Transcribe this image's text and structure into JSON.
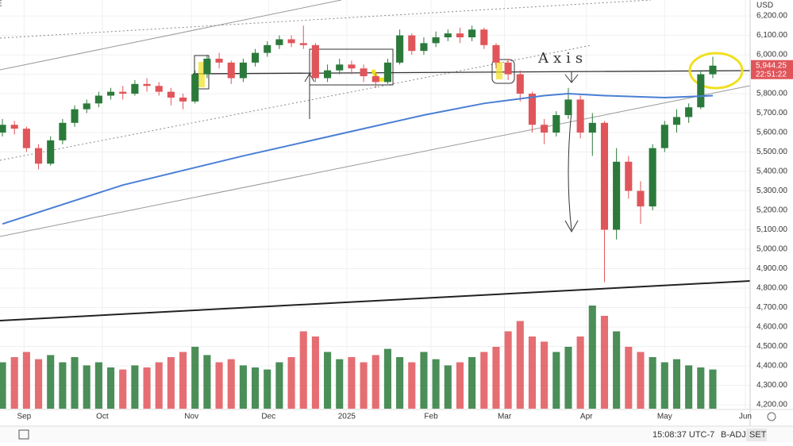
{
  "chart_data": {
    "type": "candlestick",
    "symbol_fragment": "E",
    "currency": "USD",
    "annotation": "Axis",
    "last_price": {
      "value": 5944.25,
      "label": "5,944.25"
    },
    "countdown": "22:51:22",
    "xlim": [
      -0.2,
      62.1
    ],
    "xticks": [
      {
        "value": 1.8,
        "label": "Sep"
      },
      {
        "value": 8.3,
        "label": "Oct"
      },
      {
        "value": 15.7,
        "label": "Nov"
      },
      {
        "value": 22.1,
        "label": "Dec"
      },
      {
        "value": 28.6,
        "label": "2025"
      },
      {
        "value": 35.6,
        "label": "Feb"
      },
      {
        "value": 41.7,
        "label": "Mar"
      },
      {
        "value": 48.5,
        "label": "Apr"
      },
      {
        "value": 55.0,
        "label": "May"
      },
      {
        "value": 61.7,
        "label": "Jun"
      }
    ],
    "ylim": [
      4159,
      6282
    ],
    "yticks": [
      {
        "value": 4200,
        "label": "4,200.00"
      },
      {
        "value": 4300,
        "label": "4,300.00"
      },
      {
        "value": 4400,
        "label": "4,400.00"
      },
      {
        "value": 4500,
        "label": "4,500.00"
      },
      {
        "value": 4600,
        "label": "4,600.00"
      },
      {
        "value": 4700,
        "label": "4,700.00"
      },
      {
        "value": 4800,
        "label": "4,800.00"
      },
      {
        "value": 4900,
        "label": "4,900.00"
      },
      {
        "value": 5000,
        "label": "5,000.00"
      },
      {
        "value": 5100,
        "label": "5,100.00"
      },
      {
        "value": 5200,
        "label": "5,200.00"
      },
      {
        "value": 5300,
        "label": "5,300.00"
      },
      {
        "value": 5400,
        "label": "5,400.00"
      },
      {
        "value": 5500,
        "label": "5,500.00"
      },
      {
        "value": 5600,
        "label": "5,600.00"
      },
      {
        "value": 5700,
        "label": "5,700.00"
      },
      {
        "value": 5800,
        "label": "5,800.00"
      },
      {
        "value": 5900,
        "label": "5,900.00"
      },
      {
        "value": 6000,
        "label": "6,000.00"
      },
      {
        "value": 6100,
        "label": "6,100.00"
      },
      {
        "value": 6200,
        "label": "6,200.00"
      }
    ],
    "grid": true,
    "up_color": "#2b7a3b",
    "down_color": "#e0555a",
    "open": [
      5600,
      5640,
      5620,
      5520,
      5440,
      5560,
      5650,
      5720,
      5750,
      5790,
      5810,
      5800,
      5850,
      5840,
      5810,
      5780,
      5760,
      5900,
      5980,
      5960,
      5880,
      5960,
      6010,
      6050,
      6080,
      6060,
      6050,
      5880,
      5920,
      5950,
      5930,
      5890,
      5860,
      5960,
      6100,
      6020,
      6060,
      6090,
      6110,
      6090,
      6130,
      6050,
      5960,
      5900,
      5800,
      5640,
      5600,
      5690,
      5770,
      5600,
      5650,
      5100,
      5450,
      5300,
      5220,
      5520,
      5640,
      5680,
      5730,
      5900
    ],
    "high": [
      5670,
      5660,
      5630,
      5540,
      5580,
      5670,
      5740,
      5770,
      5810,
      5830,
      5840,
      5870,
      5880,
      5860,
      5830,
      5800,
      5920,
      6000,
      6010,
      5970,
      5980,
      6030,
      6070,
      6100,
      6100,
      6150,
      6060,
      5950,
      5980,
      5970,
      5950,
      5910,
      5980,
      6130,
      6110,
      6090,
      6120,
      6130,
      6140,
      6150,
      6140,
      6060,
      5980,
      5920,
      5810,
      5670,
      5710,
      5830,
      5790,
      5700,
      5660,
      5520,
      5480,
      5350,
      5540,
      5660,
      5720,
      5750,
      5920,
      5990
    ],
    "low": [
      5580,
      5590,
      5500,
      5410,
      5430,
      5540,
      5630,
      5700,
      5730,
      5770,
      5770,
      5790,
      5810,
      5790,
      5740,
      5720,
      5750,
      5880,
      5930,
      5850,
      5860,
      5940,
      5990,
      6030,
      6040,
      6030,
      5860,
      5860,
      5900,
      5900,
      5860,
      5830,
      5850,
      5950,
      6000,
      6000,
      6040,
      6070,
      6060,
      6070,
      6030,
      5930,
      5870,
      5760,
      5600,
      5540,
      5580,
      5670,
      5570,
      5480,
      4830,
      5050,
      5260,
      5130,
      5200,
      5500,
      5600,
      5650,
      5720,
      5880
    ],
    "close": [
      5640,
      5620,
      5520,
      5440,
      5560,
      5650,
      5720,
      5750,
      5790,
      5810,
      5800,
      5850,
      5840,
      5810,
      5780,
      5760,
      5900,
      5980,
      5960,
      5880,
      5960,
      6010,
      6050,
      6080,
      6060,
      6050,
      5880,
      5920,
      5950,
      5930,
      5890,
      5860,
      5960,
      6100,
      6020,
      6060,
      6090,
      6110,
      6090,
      6130,
      6050,
      5960,
      5900,
      5800,
      5640,
      5600,
      5690,
      5770,
      5600,
      5650,
      5100,
      5450,
      5300,
      5220,
      5520,
      5640,
      5680,
      5730,
      5900,
      5944.25
    ],
    "volume": [
      45,
      50,
      55,
      48,
      52,
      45,
      50,
      42,
      45,
      40,
      38,
      42,
      40,
      45,
      50,
      55,
      60,
      52,
      45,
      48,
      42,
      40,
      38,
      45,
      50,
      75,
      70,
      55,
      48,
      50,
      45,
      52,
      58,
      50,
      45,
      55,
      48,
      42,
      45,
      50,
      55,
      60,
      75,
      85,
      70,
      65,
      55,
      60,
      70,
      100,
      90,
      75,
      60,
      55,
      50,
      45,
      48,
      42,
      40,
      38
    ],
    "volume_lim": [
      0,
      100
    ],
    "moving_average": {
      "color": "#4a7fd4",
      "x": [
        0,
        10,
        20,
        30,
        35,
        40,
        45,
        47,
        50,
        55,
        59
      ],
      "values": [
        5130,
        5330,
        5480,
        5620,
        5690,
        5750,
        5790,
        5800,
        5790,
        5780,
        5790
      ]
    },
    "status_bar": {
      "time": "15:08:37 UTC-7",
      "adjust": "B-ADJ",
      "session": "SET"
    }
  }
}
